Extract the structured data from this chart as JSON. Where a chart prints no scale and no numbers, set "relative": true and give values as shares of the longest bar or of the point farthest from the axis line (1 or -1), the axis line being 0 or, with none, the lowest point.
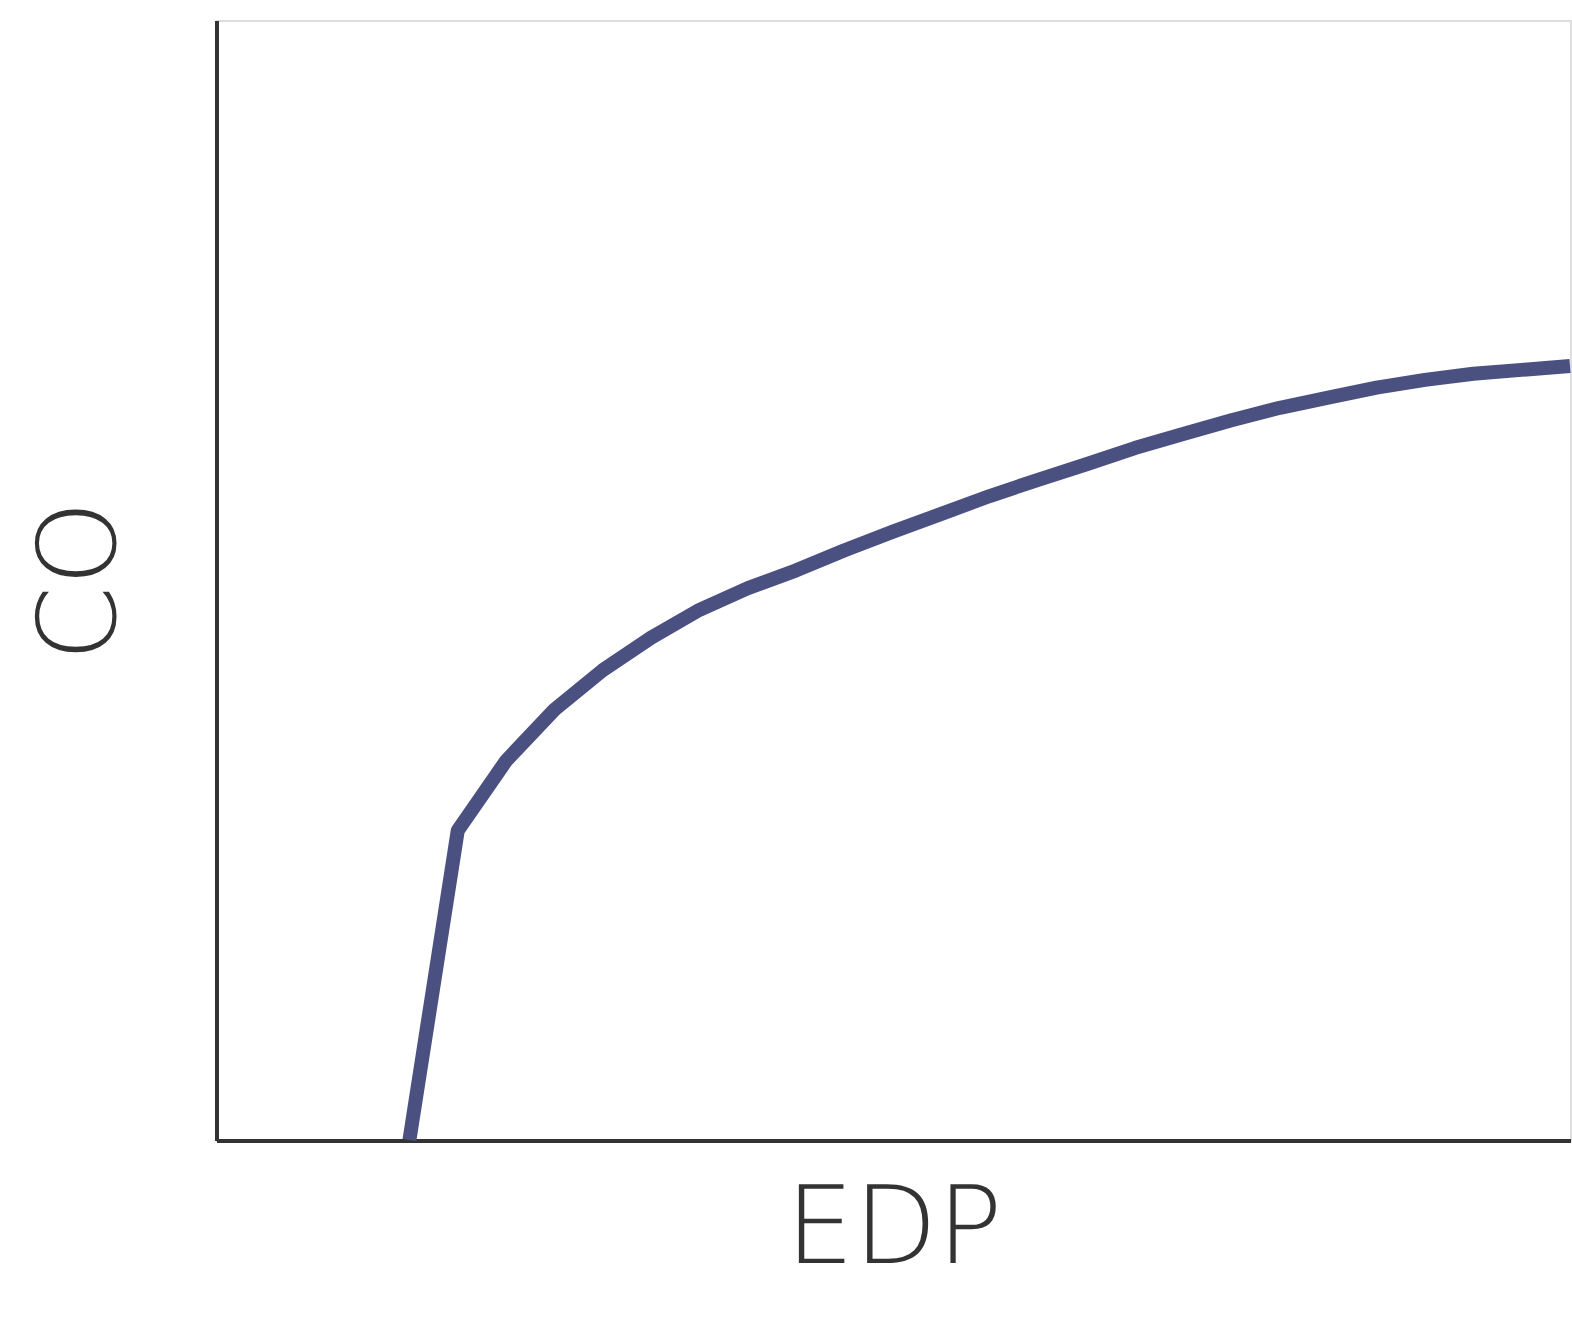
{
  "chart_data": {
    "type": "line",
    "relative": true,
    "xlabel": "EDP",
    "ylabel": "CO",
    "categories": [
      null,
      null,
      null,
      null,
      null,
      null,
      null,
      null,
      null,
      null,
      null,
      null,
      null,
      null,
      null,
      null,
      null,
      null,
      null,
      null,
      null,
      null,
      null,
      null,
      null,
      null,
      null,
      null,
      null
    ],
    "series": [
      {
        "color": "#4a5080",
        "values": [
          null,
          null,
          null,
          null,
          0,
          0.4,
          0.49,
          0.556,
          0.607,
          0.649,
          0.685,
          0.713,
          0.736,
          0.762,
          0.786,
          0.809,
          0.832,
          0.853,
          0.873,
          0.894,
          0.912,
          0.93,
          0.946,
          0.959,
          0.972,
          0.982,
          0.99,
          0.995,
          1
        ]
      }
    ],
    "marker": "none",
    "line_style": "solid"
  }
}
